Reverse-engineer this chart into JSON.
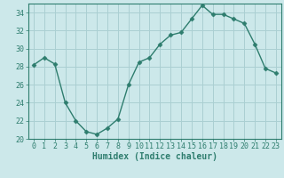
{
  "x": [
    0,
    1,
    2,
    3,
    4,
    5,
    6,
    7,
    8,
    9,
    10,
    11,
    12,
    13,
    14,
    15,
    16,
    17,
    18,
    19,
    20,
    21,
    22,
    23
  ],
  "y": [
    28.2,
    29.0,
    28.3,
    24.0,
    22.0,
    20.8,
    20.5,
    21.2,
    22.2,
    26.0,
    28.5,
    29.0,
    30.5,
    31.5,
    31.8,
    33.3,
    34.8,
    33.8,
    33.8,
    33.3,
    32.8,
    30.5,
    27.8,
    27.3
  ],
  "line_color": "#2e7d6e",
  "marker": "D",
  "markersize": 2.5,
  "linewidth": 1.0,
  "xlabel": "Humidex (Indice chaleur)",
  "xlabel_fontsize": 7,
  "tick_fontsize": 6,
  "bg_color": "#cce8ea",
  "grid_color": "#aacfd2",
  "ylim": [
    20,
    35
  ],
  "xlim": [
    -0.5,
    23.5
  ],
  "yticks": [
    20,
    22,
    24,
    26,
    28,
    30,
    32,
    34
  ],
  "xticks": [
    0,
    1,
    2,
    3,
    4,
    5,
    6,
    7,
    8,
    9,
    10,
    11,
    12,
    13,
    14,
    15,
    16,
    17,
    18,
    19,
    20,
    21,
    22,
    23
  ],
  "xtick_labels": [
    "0",
    "1",
    "2",
    "3",
    "4",
    "5",
    "6",
    "7",
    "8",
    "9",
    "10",
    "11",
    "12",
    "13",
    "14",
    "15",
    "16",
    "17",
    "18",
    "19",
    "20",
    "21",
    "22",
    "23"
  ]
}
